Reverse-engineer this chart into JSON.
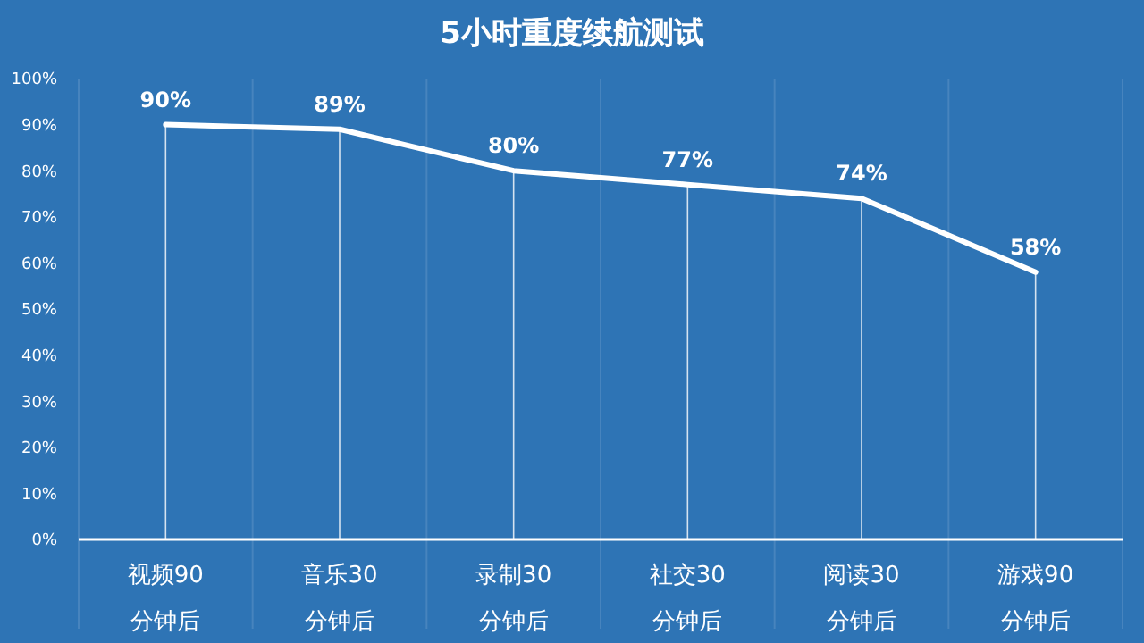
{
  "chart_data": {
    "type": "line",
    "title": "5小时重度续航测试",
    "categories": [
      "视频90\n分钟后",
      "音乐30\n分钟后",
      "录制30\n分钟后",
      "社交30\n分钟后",
      "阅读30\n分钟后",
      "游戏90\n分钟后"
    ],
    "series": [
      {
        "color": "#ffffff",
        "values": [
          90,
          89,
          80,
          77,
          74,
          58
        ],
        "value_labels": [
          "90%",
          "89%",
          "80%",
          "77%",
          "74%",
          "58%"
        ]
      }
    ],
    "ylim": [
      0,
      100
    ],
    "yticks": [
      {
        "value": 0,
        "label": "0%"
      },
      {
        "value": 10,
        "label": "10%"
      },
      {
        "value": 20,
        "label": "20%"
      },
      {
        "value": 30,
        "label": "30%"
      },
      {
        "value": 40,
        "label": "40%"
      },
      {
        "value": 50,
        "label": "50%"
      },
      {
        "value": 60,
        "label": "60%"
      },
      {
        "value": 70,
        "label": "70%"
      },
      {
        "value": 80,
        "label": "80%"
      },
      {
        "value": 90,
        "label": "90%"
      },
      {
        "value": 100,
        "label": "100%"
      }
    ],
    "grid": "x",
    "marker": "none",
    "line_style": "solid"
  }
}
